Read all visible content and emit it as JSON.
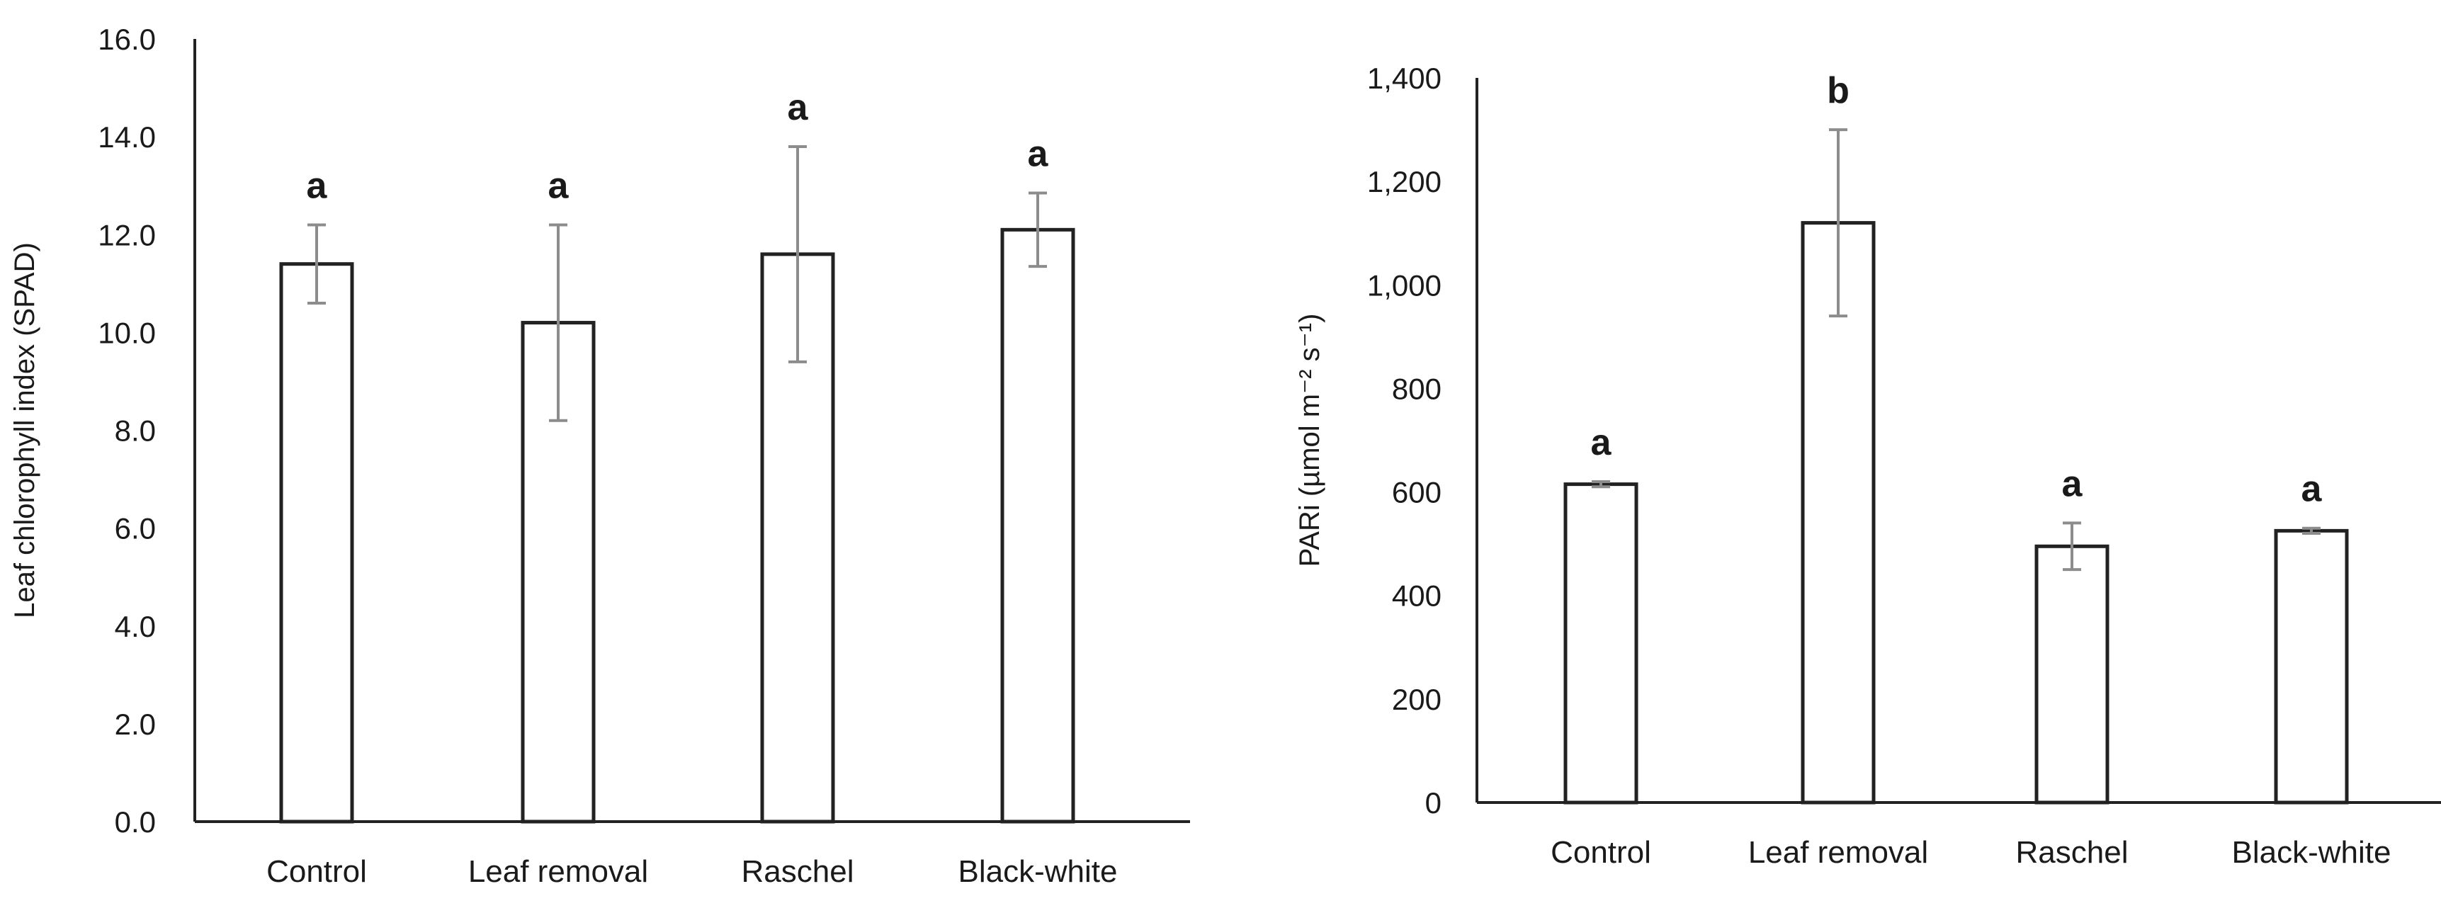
{
  "chart_data": [
    {
      "type": "bar",
      "categories": [
        "Control",
        "Leaf removal",
        "Raschel",
        "Black-white"
      ],
      "values": [
        11.4,
        10.2,
        11.6,
        12.1
      ],
      "error": [
        0.8,
        2.0,
        2.2,
        0.75
      ],
      "significance": [
        "a",
        "a",
        "a",
        "a"
      ],
      "ylabel": "Leaf chlorophyll index (SPAD)",
      "ylim": [
        0,
        16
      ],
      "yticks": [
        0,
        2,
        4,
        6,
        8,
        10,
        12,
        14,
        16
      ],
      "ytick_labels": [
        "0.0",
        "2.0",
        "4.0",
        "6.0",
        "8.0",
        "10.0",
        "12.0",
        "14.0",
        "16.0"
      ],
      "grid": false,
      "legend": "none"
    },
    {
      "type": "bar",
      "categories": [
        "Control",
        "Leaf removal",
        "Raschel",
        "Black-white"
      ],
      "values": [
        615,
        1120,
        495,
        525
      ],
      "error": [
        5,
        180,
        45,
        5
      ],
      "significance": [
        "a",
        "b",
        "a",
        "a"
      ],
      "ylabel": "PARi (µmol m⁻² s⁻¹)",
      "ylim": [
        0,
        1400
      ],
      "yticks": [
        0,
        200,
        400,
        600,
        800,
        1000,
        1200,
        1400
      ],
      "ytick_labels": [
        "0",
        "200",
        "400",
        "600",
        "800",
        "1,000",
        "1,200",
        "1,400"
      ],
      "grid": false,
      "legend": "none"
    }
  ]
}
